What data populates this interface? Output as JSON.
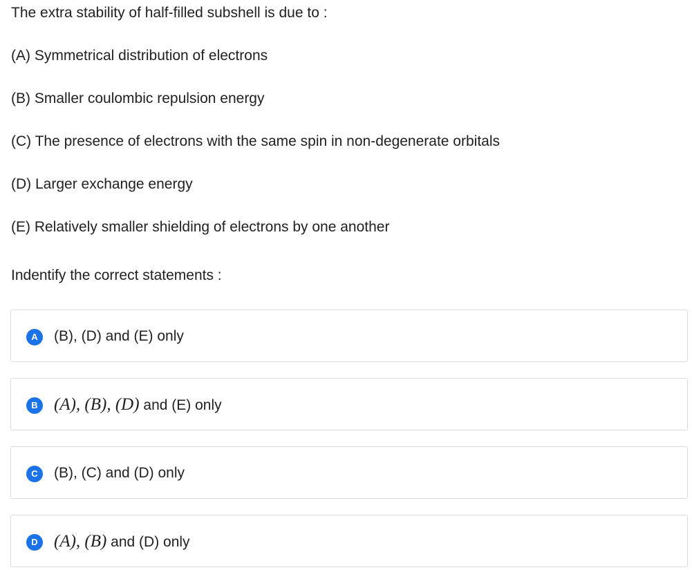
{
  "question": {
    "stem": "The extra stability of half-filled subshell is due to :",
    "statements": [
      "(A) Symmetrical distribution of electrons",
      "(B) Smaller coulombic repulsion energy",
      "(C) The presence of electrons with the same spin in non-degenerate orbitals",
      "(D) Larger exchange energy",
      "(E) Relatively smaller shielding of electrons by one another"
    ],
    "prompt": "Indentify the correct statements :"
  },
  "options": [
    {
      "letter": "A",
      "text": "(B), (D) and (E) only"
    },
    {
      "letter": "B",
      "math": "(A), (B), (D)",
      "rest": " and (E) only"
    },
    {
      "letter": "C",
      "text": "(B), (C) and (D) only"
    },
    {
      "letter": "D",
      "math": "(A), (B)",
      "rest": " and (D) only"
    }
  ],
  "colors": {
    "badge": "#1a73e8",
    "border": "#dcdcdc",
    "text": "#212121"
  }
}
